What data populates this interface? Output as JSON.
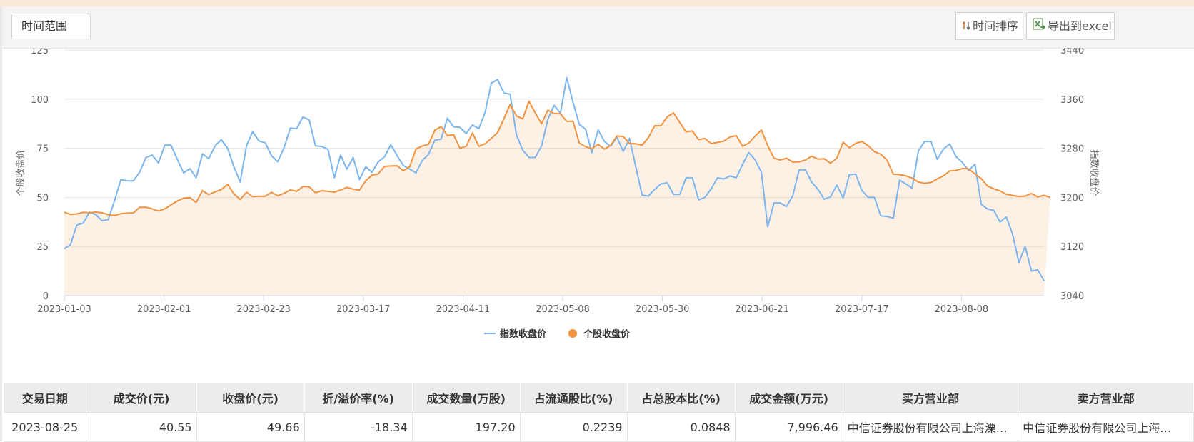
{
  "toolbar": {
    "time_range_label": "时间范围",
    "sort_label": "时间排序",
    "export_label": "导出到excel"
  },
  "chart_data": {
    "type": "line",
    "x_tick_labels": [
      "2023-01-03",
      "2023-02-01",
      "2023-02-23",
      "2023-03-17",
      "2023-04-11",
      "2023-05-08",
      "2023-05-30",
      "2023-06-21",
      "2023-07-17",
      "2023-08-08"
    ],
    "left_axis": {
      "label": "个股收盘价",
      "ylim": [
        0,
        125
      ],
      "ticks": [
        0,
        25,
        50,
        75,
        100,
        125
      ]
    },
    "right_axis": {
      "label": "指数收盘价",
      "ylim": [
        3040,
        3440
      ],
      "ticks": [
        3040,
        3120,
        3200,
        3280,
        3360,
        3440
      ]
    },
    "grid": true,
    "legend_position": "bottom-center",
    "series": [
      {
        "name": "指数收盘价",
        "axis": "right",
        "color": "#7cb5ec",
        "fill": false,
        "values": [
          3116,
          3123,
          3155,
          3158,
          3176,
          3172,
          3162,
          3164,
          3195,
          3229,
          3227,
          3227,
          3241,
          3265,
          3269,
          3256,
          3285,
          3285,
          3262,
          3240,
          3247,
          3232,
          3271,
          3263,
          3284,
          3294,
          3280,
          3250,
          3225,
          3284,
          3307,
          3292,
          3289,
          3268,
          3258,
          3281,
          3313,
          3312,
          3331,
          3326,
          3284,
          3283,
          3278,
          3232,
          3269,
          3246,
          3265,
          3229,
          3250,
          3241,
          3258,
          3266,
          3286,
          3268,
          3252,
          3246,
          3240,
          3260,
          3270,
          3293,
          3295,
          3329,
          3315,
          3314,
          3304,
          3318,
          3312,
          3338,
          3386,
          3392,
          3370,
          3368,
          3302,
          3277,
          3265,
          3265,
          3284,
          3327,
          3350,
          3337,
          3395,
          3355,
          3319,
          3311,
          3273,
          3310,
          3291,
          3283,
          3298,
          3275,
          3296,
          3250,
          3204,
          3202,
          3213,
          3222,
          3224,
          3205,
          3205,
          3232,
          3232,
          3196,
          3200,
          3214,
          3232,
          3230,
          3235,
          3232,
          3254,
          3273,
          3261,
          3241,
          3152,
          3191,
          3191,
          3185,
          3203,
          3245,
          3245,
          3225,
          3213,
          3197,
          3201,
          3220,
          3199,
          3237,
          3238,
          3211,
          3200,
          3200,
          3170,
          3169,
          3166,
          3228,
          3222,
          3215,
          3276,
          3291,
          3291,
          3262,
          3279,
          3287,
          3266,
          3257,
          3244,
          3254,
          3189,
          3181,
          3179,
          3160,
          3168,
          3140,
          3094,
          3120,
          3080,
          3082,
          3064
        ]
      },
      {
        "name": "个股收盘价",
        "axis": "left",
        "color": "#f0923f",
        "fill": true,
        "values": [
          42.5,
          41.3,
          41.6,
          42.4,
          42.2,
          42.5,
          42.2,
          41.2,
          40.8,
          41.7,
          42,
          42.1,
          45,
          45,
          44.2,
          43.1,
          44.2,
          46.2,
          48.2,
          49.6,
          49.9,
          47.5,
          53.5,
          51.4,
          52.8,
          54,
          56.6,
          51.8,
          48.9,
          52.6,
          50.4,
          50.6,
          50.6,
          52.6,
          50.8,
          52.1,
          53.8,
          53.1,
          55.5,
          55.4,
          52.4,
          53.4,
          53.1,
          52.7,
          53.8,
          55.1,
          54.2,
          53.7,
          58.5,
          61.3,
          62,
          65.8,
          66,
          66.1,
          63.6,
          65.6,
          74.6,
          76.2,
          77,
          84.2,
          86,
          81.5,
          81.9,
          75,
          76,
          82.8,
          76,
          77.3,
          80,
          83,
          90,
          97.3,
          91.5,
          90,
          99,
          93,
          87.5,
          94.4,
          92.7,
          92.6,
          88.7,
          88.8,
          77.7,
          75.8,
          74.8,
          77,
          74.6,
          76.5,
          81.3,
          81,
          77.4,
          77.3,
          76.6,
          80.4,
          86.5,
          86.5,
          91,
          93,
          88.2,
          83.4,
          83.8,
          79.4,
          80,
          77.4,
          78,
          78.6,
          80.8,
          81.4,
          76,
          77.7,
          81.2,
          84.3,
          76.4,
          70,
          69,
          70,
          68,
          68.1,
          69,
          71,
          69.5,
          69.7,
          67.4,
          70,
          78,
          75.3,
          77.5,
          78.5,
          76.3,
          73.3,
          72,
          69,
          61.9,
          61.6,
          61,
          59.8,
          57.8,
          57.2,
          57.6,
          59.4,
          61,
          63.5,
          63.7,
          64.7,
          64.5,
          62,
          59.6,
          55.8,
          54.4,
          53.3,
          51.6,
          51,
          50.5,
          50.7,
          52,
          50.2,
          51.1,
          50
        ]
      }
    ]
  },
  "table": {
    "headers": [
      "交易日期",
      "成交价(元)",
      "收盘价(元)",
      "折/溢价率(%)",
      "成交数量(万股)",
      "占流通股比(%)",
      "占总股本比(%)",
      "成交金额(万元)",
      "买方营业部",
      "卖方营业部"
    ],
    "rows": [
      [
        "2023-08-25",
        "40.55",
        "49.66",
        "-18.34",
        "197.20",
        "0.2239",
        "0.0848",
        "7,996.46",
        "中信证券股份有限公司上海溧…",
        "中信证券股份有限公司上海…"
      ]
    ]
  }
}
